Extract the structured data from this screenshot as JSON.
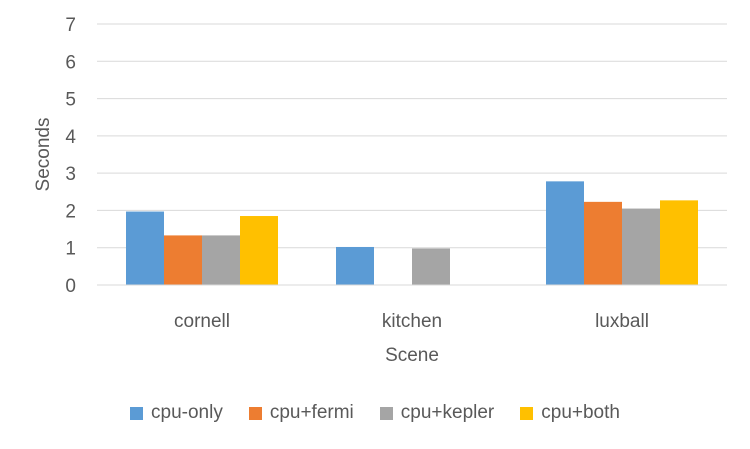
{
  "chart_data": {
    "type": "bar",
    "title": "",
    "xlabel": "Scene",
    "ylabel": "Seconds",
    "ylim": [
      0,
      7
    ],
    "yticks": [
      "0",
      "1",
      "2",
      "3",
      "4",
      "5",
      "6",
      "7"
    ],
    "grid": true,
    "legend_position": "bottom",
    "categories": [
      "cornell",
      "kitchen",
      "luxball"
    ],
    "series": [
      {
        "name": "cpu-only",
        "color": "#5B9BD5",
        "values": [
          1.97,
          1.02,
          2.78
        ]
      },
      {
        "name": "cpu+fermi",
        "color": "#ED7D31",
        "values": [
          1.33,
          null,
          2.23
        ]
      },
      {
        "name": "cpu+kepler",
        "color": "#A5A5A5",
        "values": [
          1.33,
          0.98,
          2.05
        ]
      },
      {
        "name": "cpu+both",
        "color": "#FFC000",
        "values": [
          1.85,
          null,
          2.27
        ]
      }
    ]
  }
}
